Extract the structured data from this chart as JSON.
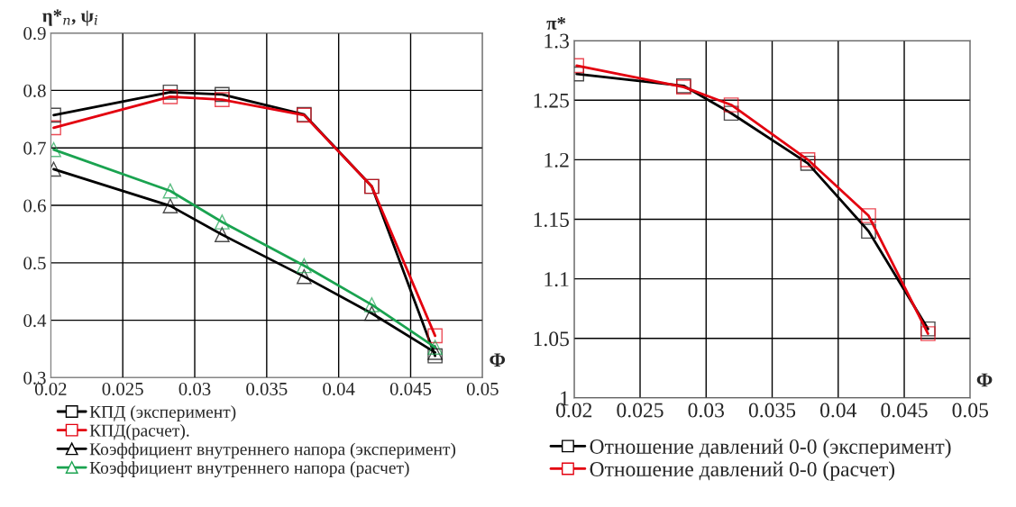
{
  "chart_data": [
    {
      "type": "line",
      "ylabel": "η*$_{п}$, ψ$_{i}$",
      "xlabel": "Φ",
      "xlim": [
        0.02,
        0.05
      ],
      "xticks": [
        0.02,
        0.025,
        0.03,
        0.035,
        0.04,
        0.045,
        0.05
      ],
      "ylim": [
        0.3,
        0.9
      ],
      "yticks": [
        0.3,
        0.4,
        0.5,
        0.6,
        0.7,
        0.8,
        0.9
      ],
      "grid": true,
      "legend": "bottom",
      "series": [
        {
          "name": "КПД (эксперимент)",
          "color": "#000000",
          "marker": "square",
          "x": [
            0.0202,
            0.0283,
            0.0319,
            0.0376,
            0.0423,
            0.0467
          ],
          "values": [
            0.757,
            0.797,
            0.793,
            0.758,
            0.633,
            0.338
          ]
        },
        {
          "name": "КПД(расчет).",
          "color": "#e3000f",
          "marker": "square",
          "x": [
            0.0202,
            0.0283,
            0.0319,
            0.0376,
            0.0423,
            0.0467
          ],
          "values": [
            0.735,
            0.789,
            0.784,
            0.757,
            0.633,
            0.373
          ]
        },
        {
          "name": "Коэффициент внутреннего напора (эксперимент)",
          "color": "#000000",
          "marker": "triangle",
          "x": [
            0.0202,
            0.0283,
            0.0319,
            0.0376,
            0.0423,
            0.0467
          ],
          "values": [
            0.663,
            0.599,
            0.549,
            0.476,
            0.412,
            0.344
          ]
        },
        {
          "name": "Коэффициент внутреннего напора (расчет)",
          "color": "#1aa350",
          "marker": "triangle",
          "x": [
            0.0202,
            0.0283,
            0.0319,
            0.0376,
            0.0423,
            0.0467
          ],
          "values": [
            0.697,
            0.625,
            0.571,
            0.495,
            0.427,
            0.353
          ]
        }
      ]
    },
    {
      "type": "line",
      "ylabel": "π*",
      "xlabel": "Φ",
      "xlim": [
        0.02,
        0.05
      ],
      "xticks": [
        0.02,
        0.025,
        0.03,
        0.035,
        0.04,
        0.045,
        0.05
      ],
      "ylim": [
        1,
        1.3
      ],
      "yticks": [
        1,
        1.05,
        1.1,
        1.15,
        1.2,
        1.25,
        1.3
      ],
      "grid": true,
      "legend": "bottom",
      "series": [
        {
          "name": "Отношение давлений 0-0 (эксперимент)",
          "color": "#000000",
          "marker": "square",
          "x": [
            0.0202,
            0.0283,
            0.0319,
            0.0377,
            0.0423,
            0.0468
          ],
          "values": [
            1.272,
            1.262,
            1.239,
            1.197,
            1.14,
            1.058
          ]
        },
        {
          "name": "Отношение давлений 0-0 (расчет)",
          "color": "#e3000f",
          "marker": "square",
          "x": [
            0.0202,
            0.0283,
            0.0319,
            0.0377,
            0.0423,
            0.0468
          ],
          "values": [
            1.279,
            1.261,
            1.246,
            1.2,
            1.153,
            1.054
          ]
        }
      ]
    }
  ]
}
